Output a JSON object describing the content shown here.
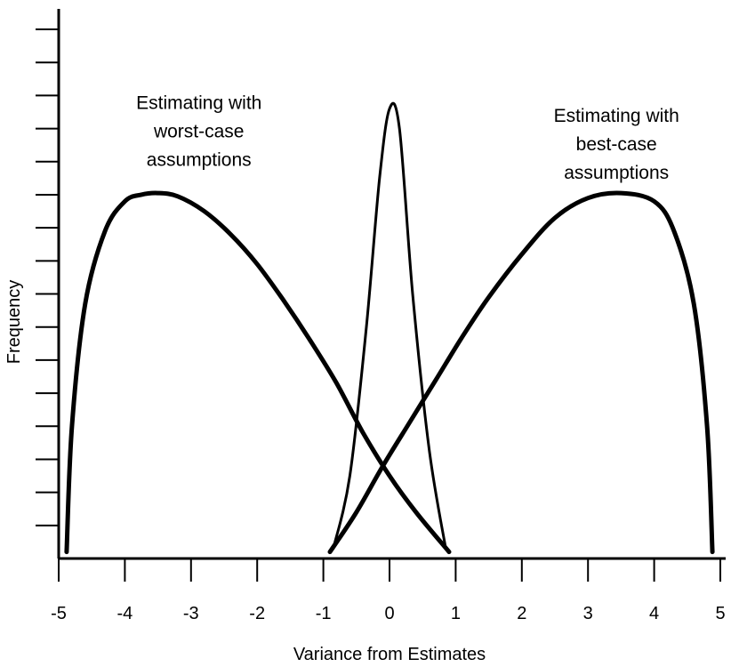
{
  "chart_data": {
    "type": "line",
    "title": "",
    "xlabel": "Variance from Estimates",
    "ylabel": "Frequency",
    "xlim": [
      -5,
      5
    ],
    "ylim": [
      0,
      16
    ],
    "x_ticks": [
      -5,
      -4,
      -3,
      -2,
      -1,
      0,
      1,
      2,
      3,
      4,
      5
    ],
    "x_tick_labels": [
      "-5",
      "-4",
      "-3",
      "-2",
      "-1",
      "0",
      "1",
      "2",
      "3",
      "4",
      "5"
    ],
    "y_tick_count": 16,
    "y_tick_labels_shown": false,
    "grid": false,
    "legend": "none",
    "line_color": "#000000",
    "series": [
      {
        "points": [
          [
            -4.88,
            0.2
          ],
          [
            -4.8,
            4.0
          ],
          [
            -4.6,
            7.7
          ],
          [
            -4.3,
            9.9
          ],
          [
            -4.0,
            10.8
          ],
          [
            -3.75,
            11.0
          ],
          [
            -3.5,
            11.05
          ],
          [
            -3.2,
            10.95
          ],
          [
            -2.8,
            10.5
          ],
          [
            -2.4,
            9.8
          ],
          [
            -2.0,
            8.9
          ],
          [
            -1.6,
            7.8
          ],
          [
            -1.2,
            6.6
          ],
          [
            -0.8,
            5.3
          ],
          [
            -0.4,
            3.8
          ],
          [
            0.0,
            2.5
          ],
          [
            0.4,
            1.4
          ],
          [
            0.9,
            0.2
          ]
        ]
      },
      {
        "points": [
          [
            -0.85,
            0.3
          ],
          [
            -0.6,
            2.5
          ],
          [
            -0.35,
            7.0
          ],
          [
            -0.15,
            11.5
          ],
          [
            0.0,
            13.6
          ],
          [
            0.15,
            13.0
          ],
          [
            0.35,
            8.0
          ],
          [
            0.6,
            3.3
          ],
          [
            0.85,
            0.3
          ]
        ]
      },
      {
        "points": [
          [
            -0.9,
            0.2
          ],
          [
            -0.5,
            1.4
          ],
          [
            -0.1,
            2.8
          ],
          [
            0.3,
            4.1
          ],
          [
            0.7,
            5.4
          ],
          [
            1.1,
            6.7
          ],
          [
            1.5,
            7.9
          ],
          [
            2.0,
            9.2
          ],
          [
            2.5,
            10.3
          ],
          [
            3.0,
            10.9
          ],
          [
            3.5,
            11.05
          ],
          [
            4.0,
            10.8
          ],
          [
            4.3,
            9.9
          ],
          [
            4.6,
            7.7
          ],
          [
            4.8,
            4.0
          ],
          [
            4.88,
            0.2
          ]
        ]
      }
    ],
    "annotations": [
      {
        "lines": [
          "Estimating with",
          "worst-case",
          "assumptions"
        ],
        "anchor_x": -2.88,
        "anchor_y": 13.6
      },
      {
        "lines": [
          "Estimating with",
          "best-case",
          "assumptions"
        ],
        "anchor_x": 3.43,
        "anchor_y": 13.2
      }
    ]
  }
}
